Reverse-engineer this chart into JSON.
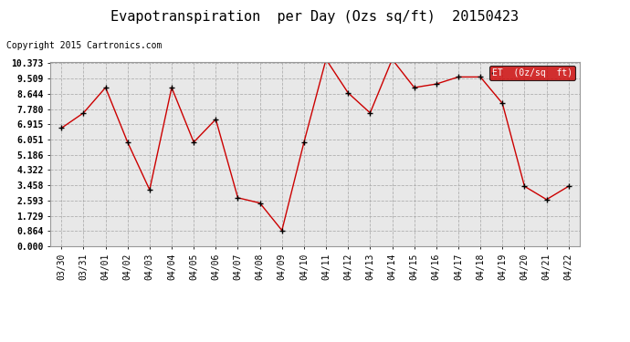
{
  "title": "Evapotranspiration  per Day (Ozs sq/ft)  20150423",
  "copyright": "Copyright 2015 Cartronics.com",
  "legend_label": "ET  (0z/sq  ft)",
  "dates": [
    "03/30",
    "03/31",
    "04/01",
    "04/02",
    "04/03",
    "04/04",
    "04/05",
    "04/06",
    "04/07",
    "04/08",
    "04/09",
    "04/10",
    "04/11",
    "04/12",
    "04/13",
    "04/14",
    "04/15",
    "04/16",
    "04/17",
    "04/18",
    "04/19",
    "04/20",
    "04/21",
    "04/22"
  ],
  "values": [
    6.7,
    7.56,
    9.0,
    5.9,
    3.2,
    9.0,
    5.9,
    7.2,
    2.75,
    2.45,
    0.9,
    5.9,
    10.6,
    8.7,
    7.56,
    10.6,
    9.0,
    9.2,
    9.6,
    9.6,
    8.1,
    3.4,
    2.65,
    3.4
  ],
  "yticks": [
    0.0,
    0.864,
    1.729,
    2.593,
    3.458,
    4.322,
    5.186,
    6.051,
    6.915,
    7.78,
    8.644,
    9.509,
    10.373
  ],
  "line_color": "#cc0000",
  "marker": "+",
  "marker_color": "#000000",
  "bg_color": "#ffffff",
  "plot_bg_color": "#e8e8e8",
  "grid_color": "#aaaaaa",
  "title_fontsize": 11,
  "copyright_fontsize": 7,
  "legend_fontsize": 7,
  "tick_fontsize": 7,
  "legend_bg": "#cc0000",
  "legend_text_color": "#ffffff",
  "ymin": 0.0,
  "ymax": 10.373
}
